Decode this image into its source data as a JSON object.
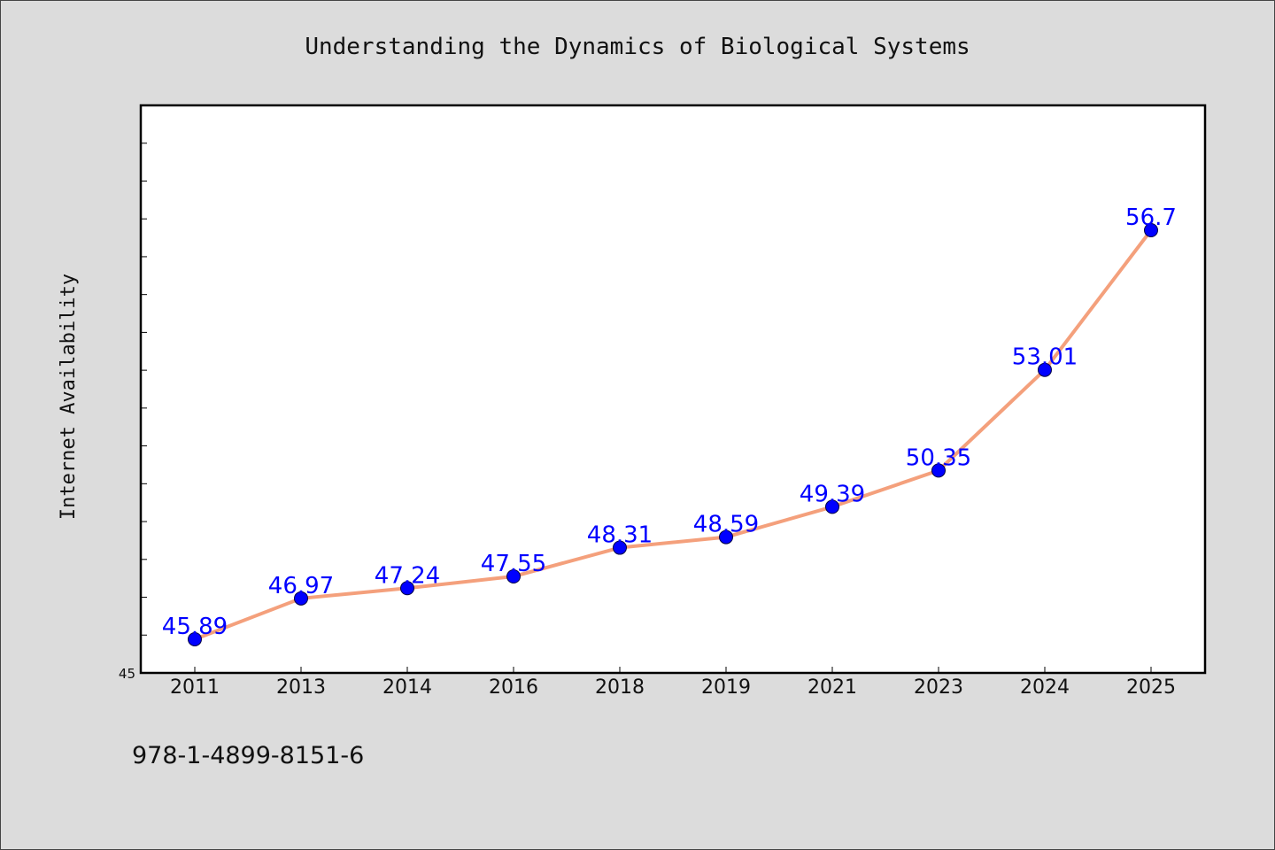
{
  "chart_data": {
    "type": "line",
    "title": "Understanding the Dynamics of Biological Systems",
    "xlabel": "",
    "ylabel": "Internet Availability",
    "categories": [
      "2011",
      "2013",
      "2014",
      "2016",
      "2018",
      "2019",
      "2021",
      "2023",
      "2024",
      "2025"
    ],
    "series": [
      {
        "values": [
          45.89,
          46.97,
          47.24,
          47.55,
          48.31,
          48.59,
          49.39,
          50.35,
          53.01,
          56.7
        ],
        "data_labels": [
          "45.89",
          "46.97",
          "47.24",
          "47.55",
          "48.31",
          "48.59",
          "49.39",
          "50.35",
          "53.01",
          "56.7"
        ]
      }
    ],
    "ylim": [
      45,
      60
    ],
    "y_tick_label": "45",
    "grid": false,
    "line_color": "#f4a07c",
    "marker_color": "#0000ff",
    "label_color": "#0000ff",
    "plot_background": "#ffffff",
    "figure_background": "#dcdcdc"
  },
  "footer": {
    "text": "978-1-4899-8151-6"
  }
}
